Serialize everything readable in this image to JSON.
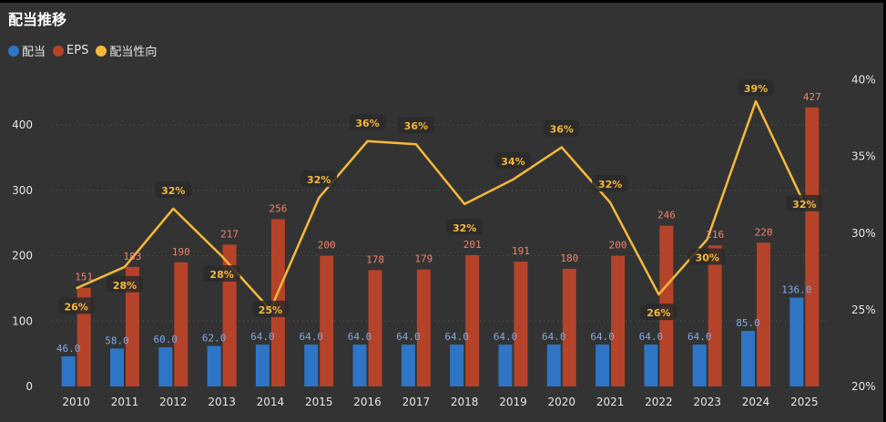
{
  "chart_data": {
    "type": "bar+line",
    "title": "配当推移",
    "categories": [
      "2010",
      "2011",
      "2012",
      "2013",
      "2014",
      "2015",
      "2016",
      "2017",
      "2018",
      "2019",
      "2020",
      "2021",
      "2022",
      "2023",
      "2024",
      "2025"
    ],
    "series": [
      {
        "name": "配当",
        "type": "bar",
        "axis": "left",
        "color": "#2e75c6",
        "values": [
          46,
          58,
          60,
          62,
          64,
          64,
          64,
          64,
          64,
          64,
          64,
          64,
          64,
          64,
          85,
          136
        ],
        "labels": [
          "46.0",
          "58.0",
          "60.0",
          "62.0",
          "64.0",
          "64.0",
          "64.0",
          "64.0",
          "64.0",
          "64.0",
          "64.0",
          "64.0",
          "64.0",
          "64.0",
          "85.0",
          "136.0"
        ]
      },
      {
        "name": "EPS",
        "type": "bar",
        "axis": "left",
        "color": "#b5432a",
        "values": [
          151,
          183,
          190,
          217,
          256,
          200,
          178,
          179,
          201,
          191,
          180,
          200,
          246,
          216,
          220,
          427
        ],
        "labels": [
          "151",
          "183",
          "190",
          "217",
          "256",
          "200",
          "178",
          "179",
          "201",
          "191",
          "180",
          "200",
          "246",
          "216",
          "220",
          "427"
        ]
      },
      {
        "name": "配当性向",
        "type": "line",
        "axis": "right",
        "color": "#f5b93a",
        "values": [
          26.4,
          27.8,
          31.6,
          28.5,
          25.0,
          32.3,
          36.0,
          35.8,
          31.9,
          33.5,
          35.6,
          32.0,
          26.0,
          29.6,
          38.6,
          31.9
        ],
        "labels": [
          "26%",
          "28%",
          "32%",
          "28%",
          "25%",
          "32%",
          "36%",
          "36%",
          "32%",
          "34%",
          "36%",
          "32%",
          "26%",
          "30%",
          "39%",
          "32%"
        ]
      }
    ],
    "y_left": {
      "min": 0,
      "max": 470,
      "ticks": [
        "0",
        "100",
        "200",
        "300",
        "400"
      ],
      "tick_values": [
        0,
        100,
        200,
        300,
        400
      ]
    },
    "y_right": {
      "min": 20,
      "max": 41.5,
      "ticks": [
        "20%",
        "25%",
        "30%",
        "35%",
        "40%"
      ],
      "tick_values": [
        20,
        25,
        30,
        35,
        40
      ]
    },
    "grid": true,
    "legend": "top-left"
  }
}
